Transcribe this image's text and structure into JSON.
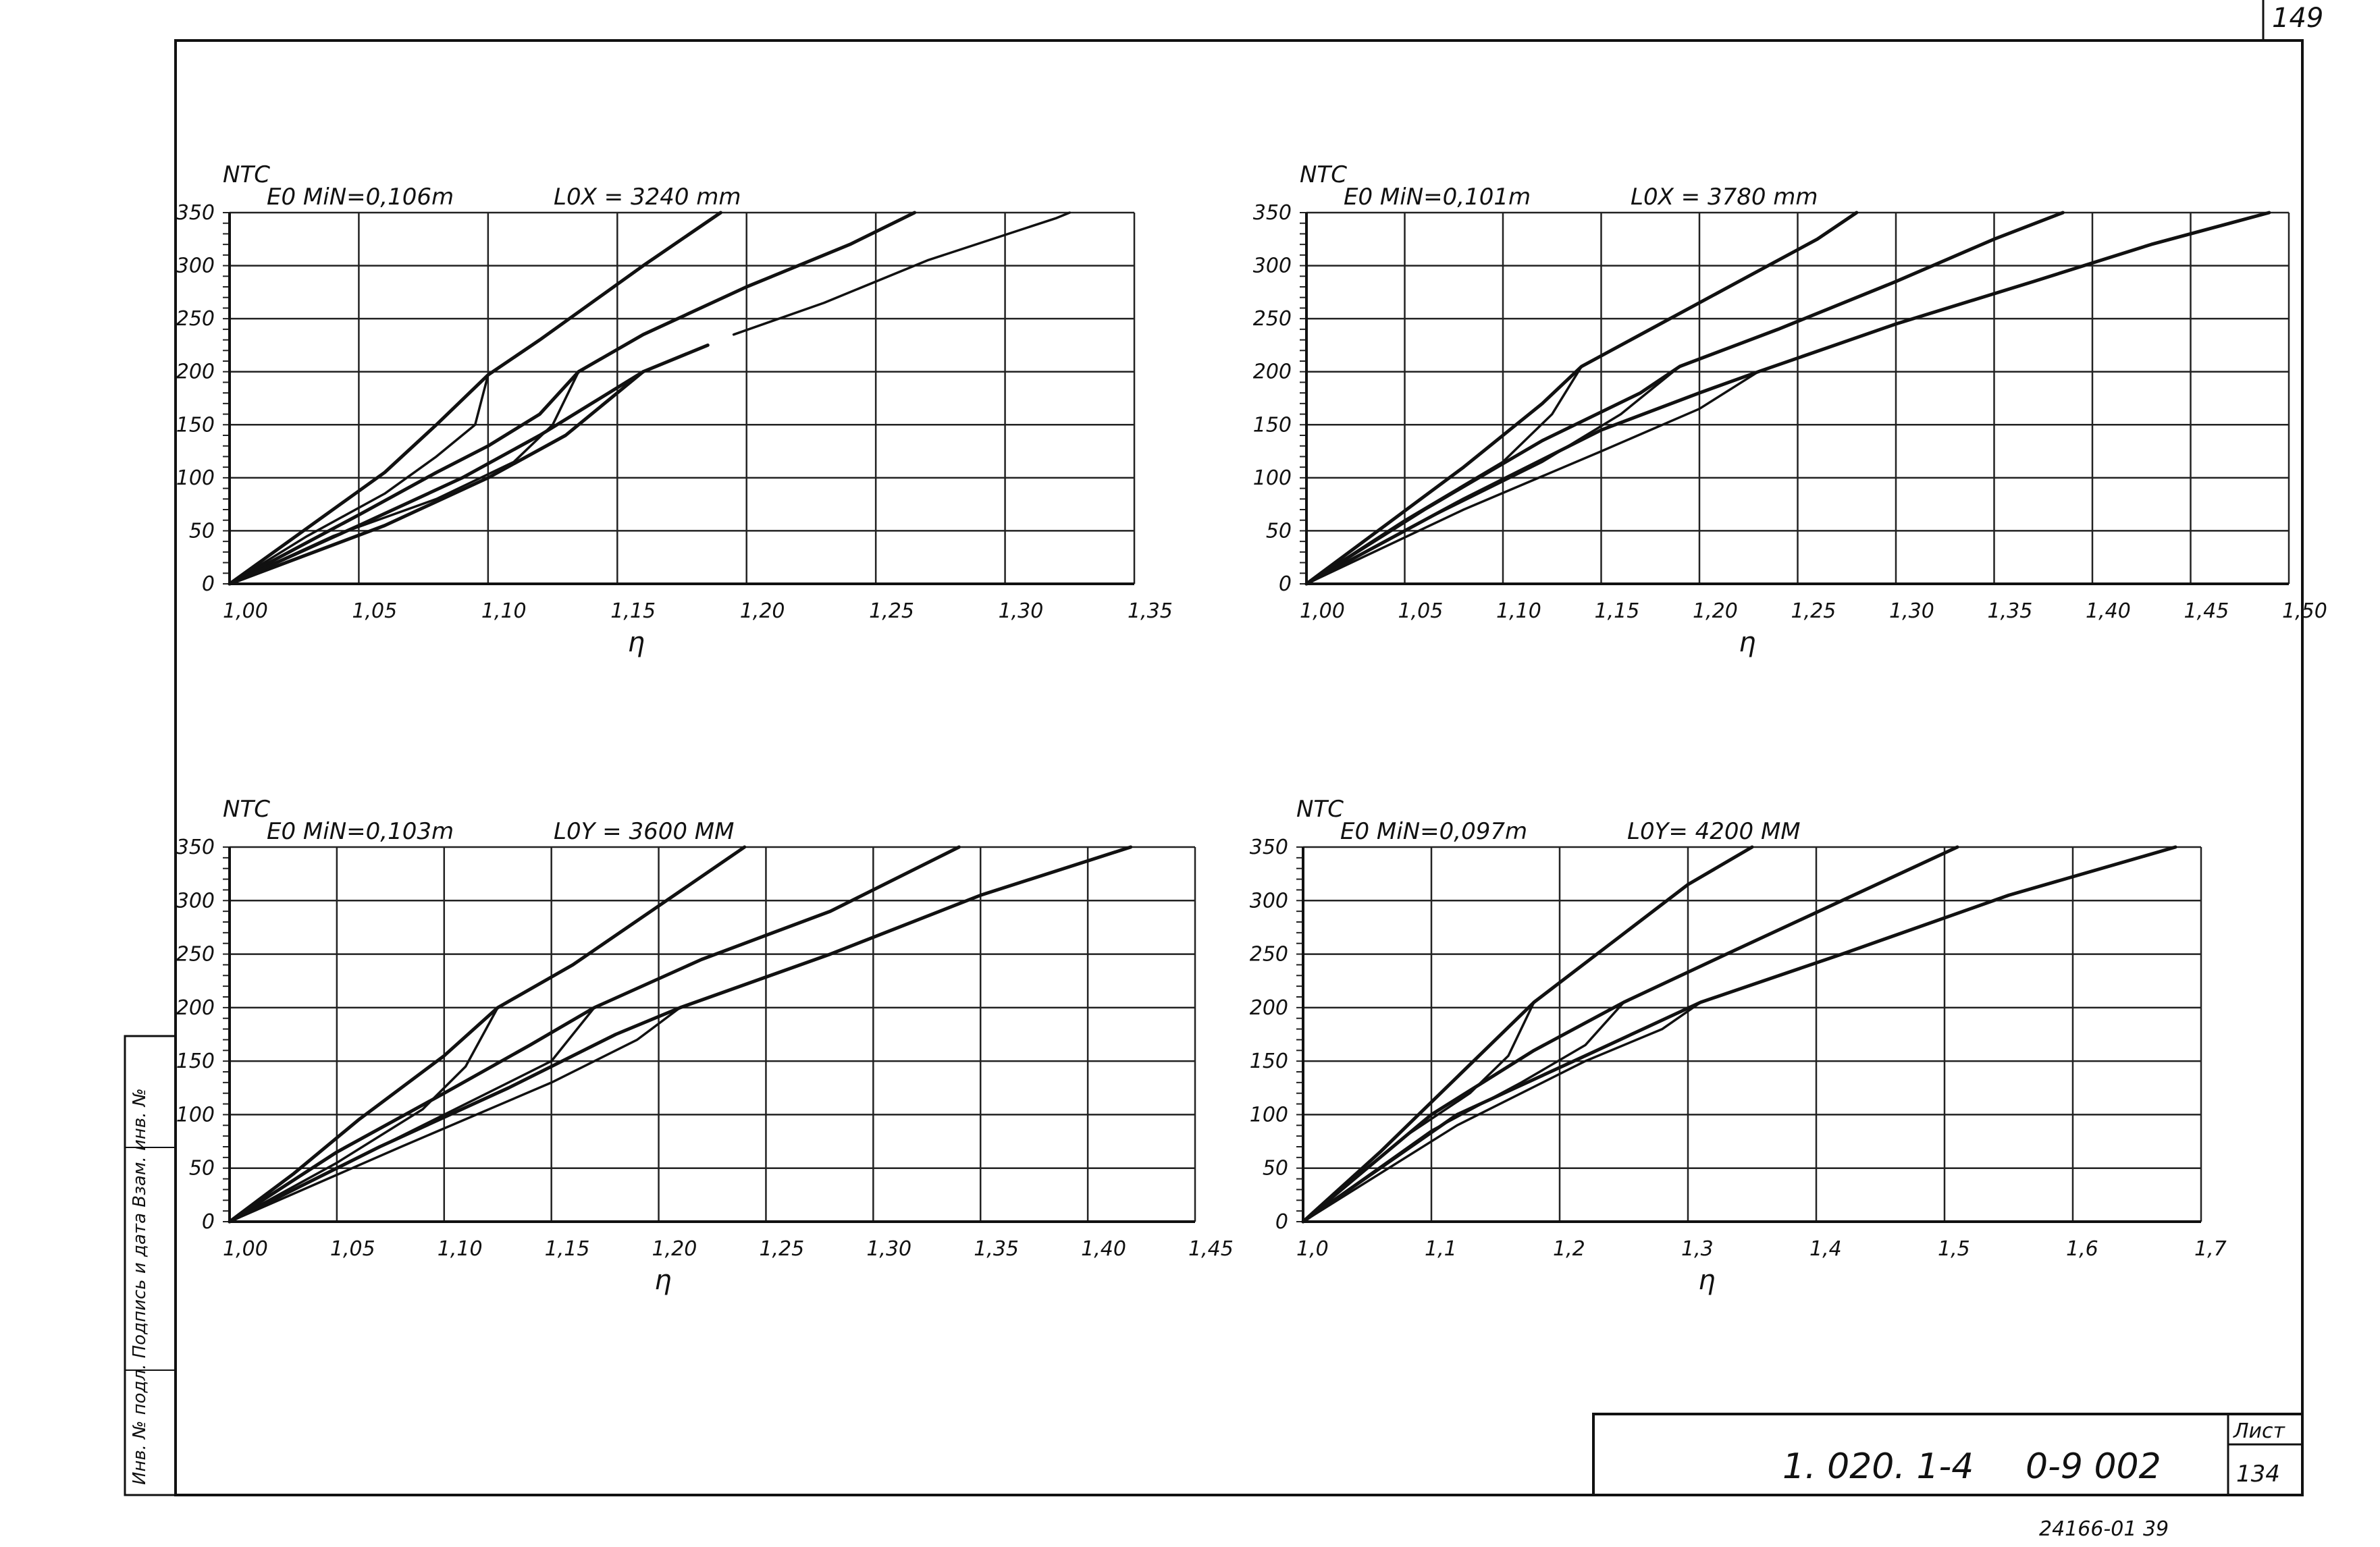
{
  "sheet": {
    "page_number": "149",
    "document_code": "1. 020. 1-4",
    "drawing_code": "0-9 002",
    "sheet_label": "Лист",
    "sheet_number": "134",
    "stamp": "24166-01 39",
    "side_stamp": "Инв. № подл.   Подпись и дата   Взам. инв. №"
  },
  "chart_data": [
    {
      "type": "line",
      "ylabel": "NТС",
      "xlabel": "η",
      "param_e": "E0 MiN=0,106m",
      "param_l": "L0X = 3240 mm",
      "x_ticks": [
        1.0,
        1.05,
        1.1,
        1.15,
        1.2,
        1.25,
        1.3,
        1.35
      ],
      "x_tick_labels": [
        "1,00",
        "1,05",
        "1,10",
        "1,15",
        "1,20",
        "1,25",
        "1,30",
        "1,35"
      ],
      "y_ticks": [
        0,
        50,
        100,
        150,
        200,
        250,
        300,
        350
      ],
      "y_tick_labels": [
        "0",
        "50",
        "100",
        "150",
        "200",
        "250",
        "300",
        "350"
      ],
      "xlim": [
        1.0,
        1.35
      ],
      "ylim": [
        0,
        350
      ],
      "grid": true,
      "series": [
        {
          "points": [
            [
              1.0,
              0
            ],
            [
              1.02,
              35
            ],
            [
              1.04,
              70
            ],
            [
              1.06,
              105
            ],
            [
              1.08,
              150
            ],
            [
              1.1,
              197
            ],
            [
              1.12,
              230
            ],
            [
              1.14,
              265
            ],
            [
              1.16,
              300
            ],
            [
              1.19,
              350
            ]
          ]
        },
        {
          "points": [
            [
              1.0,
              0
            ],
            [
              1.03,
              45
            ],
            [
              1.06,
              85
            ],
            [
              1.08,
              120
            ],
            [
              1.095,
              150
            ],
            [
              1.1,
              197
            ]
          ]
        },
        {
          "points": [
            [
              1.0,
              0
            ],
            [
              1.05,
              65
            ],
            [
              1.08,
              105
            ],
            [
              1.1,
              130
            ],
            [
              1.12,
              160
            ],
            [
              1.135,
              200
            ],
            [
              1.16,
              235
            ],
            [
              1.2,
              280
            ],
            [
              1.24,
              320
            ],
            [
              1.265,
              350
            ]
          ]
        },
        {
          "points": [
            [
              1.0,
              0
            ],
            [
              1.04,
              45
            ],
            [
              1.08,
              80
            ],
            [
              1.11,
              115
            ],
            [
              1.125,
              150
            ],
            [
              1.135,
              200
            ]
          ]
        },
        {
          "points": [
            [
              1.0,
              0
            ],
            [
              1.06,
              55
            ],
            [
              1.1,
              100
            ],
            [
              1.13,
              140
            ],
            [
              1.16,
              200
            ],
            [
              1.185,
              225
            ]
          ]
        },
        {
          "points": [
            [
              1.195,
              235
            ],
            [
              1.23,
              265
            ],
            [
              1.27,
              305
            ],
            [
              1.32,
              345
            ],
            [
              1.325,
              350
            ]
          ]
        },
        {
          "points": [
            [
              1.0,
              0
            ],
            [
              1.05,
              55
            ],
            [
              1.09,
              100
            ],
            [
              1.12,
              140
            ],
            [
              1.14,
              170
            ],
            [
              1.16,
              200
            ]
          ]
        }
      ]
    },
    {
      "type": "line",
      "ylabel": "NТС",
      "xlabel": "η",
      "param_e": "E0 MiN=0,101m",
      "param_l": "L0X = 3780 mm",
      "x_ticks": [
        1.0,
        1.05,
        1.1,
        1.15,
        1.2,
        1.25,
        1.3,
        1.35,
        1.4,
        1.45,
        1.5
      ],
      "x_tick_labels": [
        "1,00",
        "1,05",
        "1,10",
        "1,15",
        "1,20",
        "1,25",
        "1,30",
        "1,35",
        "1,40",
        "1,45",
        "1,50"
      ],
      "y_ticks": [
        0,
        50,
        100,
        150,
        200,
        250,
        300,
        350
      ],
      "y_tick_labels": [
        "0",
        "50",
        "100",
        "150",
        "200",
        "250",
        "300",
        "350"
      ],
      "xlim": [
        1.0,
        1.5
      ],
      "ylim": [
        0,
        350
      ],
      "grid": true,
      "series": [
        {
          "points": [
            [
              1.0,
              0
            ],
            [
              1.04,
              55
            ],
            [
              1.08,
              110
            ],
            [
              1.12,
              170
            ],
            [
              1.14,
              205
            ],
            [
              1.18,
              245
            ],
            [
              1.22,
              285
            ],
            [
              1.26,
              325
            ],
            [
              1.28,
              350
            ]
          ]
        },
        {
          "points": [
            [
              1.0,
              0
            ],
            [
              1.05,
              60
            ],
            [
              1.1,
              115
            ],
            [
              1.125,
              160
            ],
            [
              1.14,
              205
            ]
          ]
        },
        {
          "points": [
            [
              1.0,
              0
            ],
            [
              1.06,
              70
            ],
            [
              1.12,
              135
            ],
            [
              1.17,
              180
            ],
            [
              1.19,
              205
            ],
            [
              1.24,
              240
            ],
            [
              1.3,
              285
            ],
            [
              1.35,
              325
            ],
            [
              1.385,
              350
            ]
          ]
        },
        {
          "points": [
            [
              1.0,
              0
            ],
            [
              1.06,
              60
            ],
            [
              1.12,
              115
            ],
            [
              1.16,
              160
            ],
            [
              1.19,
              205
            ]
          ]
        },
        {
          "points": [
            [
              1.0,
              0
            ],
            [
              1.08,
              80
            ],
            [
              1.15,
              145
            ],
            [
              1.2,
              180
            ],
            [
              1.23,
              200
            ],
            [
              1.3,
              245
            ],
            [
              1.37,
              285
            ],
            [
              1.43,
              320
            ],
            [
              1.49,
              350
            ]
          ]
        },
        {
          "points": [
            [
              1.0,
              0
            ],
            [
              1.08,
              70
            ],
            [
              1.15,
              125
            ],
            [
              1.2,
              165
            ],
            [
              1.23,
              200
            ]
          ]
        }
      ]
    },
    {
      "type": "line",
      "ylabel": "NТС",
      "xlabel": "η",
      "param_e": "E0 MiN=0,103m",
      "param_l": "L0Y = 3600 MM",
      "x_ticks": [
        1.0,
        1.05,
        1.1,
        1.15,
        1.2,
        1.25,
        1.3,
        1.35,
        1.4,
        1.45
      ],
      "x_tick_labels": [
        "1,00",
        "1,05",
        "1,10",
        "1,15",
        "1,20",
        "1,25",
        "1,30",
        "1,35",
        "1,40",
        "1,45"
      ],
      "y_ticks": [
        0,
        50,
        100,
        150,
        200,
        250,
        300,
        350
      ],
      "y_tick_labels": [
        "0",
        "50",
        "100",
        "150",
        "200",
        "250",
        "300",
        "350"
      ],
      "xlim": [
        1.0,
        1.45
      ],
      "ylim": [
        0,
        350
      ],
      "grid": true,
      "series": [
        {
          "points": [
            [
              1.0,
              0
            ],
            [
              1.03,
              45
            ],
            [
              1.06,
              95
            ],
            [
              1.1,
              155
            ],
            [
              1.125,
              200
            ],
            [
              1.16,
              240
            ],
            [
              1.2,
              295
            ],
            [
              1.24,
              350
            ]
          ]
        },
        {
          "points": [
            [
              1.0,
              0
            ],
            [
              1.05,
              55
            ],
            [
              1.09,
              105
            ],
            [
              1.11,
              145
            ],
            [
              1.125,
              200
            ]
          ]
        },
        {
          "points": [
            [
              1.0,
              0
            ],
            [
              1.05,
              65
            ],
            [
              1.1,
              120
            ],
            [
              1.14,
              165
            ],
            [
              1.17,
              200
            ],
            [
              1.22,
              245
            ],
            [
              1.28,
              290
            ],
            [
              1.34,
              350
            ]
          ]
        },
        {
          "points": [
            [
              1.0,
              0
            ],
            [
              1.06,
              60
            ],
            [
              1.11,
              110
            ],
            [
              1.15,
              150
            ],
            [
              1.17,
              200
            ]
          ]
        },
        {
          "points": [
            [
              1.0,
              0
            ],
            [
              1.07,
              70
            ],
            [
              1.13,
              125
            ],
            [
              1.18,
              175
            ],
            [
              1.21,
              200
            ],
            [
              1.28,
              250
            ],
            [
              1.35,
              305
            ],
            [
              1.42,
              350
            ]
          ]
        },
        {
          "points": [
            [
              1.0,
              0
            ],
            [
              1.08,
              70
            ],
            [
              1.15,
              130
            ],
            [
              1.19,
              170
            ],
            [
              1.21,
              200
            ]
          ]
        }
      ]
    },
    {
      "type": "line",
      "ylabel": "NТС",
      "xlabel": "η",
      "param_e": "E0 MiN=0,097m",
      "param_l": "L0Y= 4200 MM",
      "x_ticks": [
        1.0,
        1.1,
        1.2,
        1.3,
        1.4,
        1.5,
        1.6,
        1.7
      ],
      "x_tick_labels": [
        "1,0",
        "1,1",
        "1,2",
        "1,3",
        "1,4",
        "1,5",
        "1,6",
        "1,7"
      ],
      "y_ticks": [
        0,
        50,
        100,
        150,
        200,
        250,
        300,
        350
      ],
      "y_tick_labels": [
        "0",
        "50",
        "100",
        "150",
        "200",
        "250",
        "300",
        "350"
      ],
      "xlim": [
        1.0,
        1.7
      ],
      "ylim": [
        0,
        350
      ],
      "grid": true,
      "series": [
        {
          "points": [
            [
              1.0,
              0
            ],
            [
              1.06,
              65
            ],
            [
              1.12,
              135
            ],
            [
              1.18,
              205
            ],
            [
              1.24,
              260
            ],
            [
              1.3,
              315
            ],
            [
              1.35,
              350
            ]
          ]
        },
        {
          "points": [
            [
              1.0,
              0
            ],
            [
              1.08,
              80
            ],
            [
              1.13,
              120
            ],
            [
              1.16,
              155
            ],
            [
              1.18,
              205
            ]
          ]
        },
        {
          "points": [
            [
              1.0,
              0
            ],
            [
              1.1,
              100
            ],
            [
              1.18,
              160
            ],
            [
              1.25,
              205
            ],
            [
              1.33,
              250
            ],
            [
              1.42,
              300
            ],
            [
              1.51,
              350
            ]
          ]
        },
        {
          "points": [
            [
              1.0,
              0
            ],
            [
              1.1,
              85
            ],
            [
              1.17,
              130
            ],
            [
              1.22,
              165
            ],
            [
              1.25,
              205
            ]
          ]
        },
        {
          "points": [
            [
              1.0,
              0
            ],
            [
              1.12,
              100
            ],
            [
              1.22,
              155
            ],
            [
              1.31,
              205
            ],
            [
              1.42,
              250
            ],
            [
              1.55,
              305
            ],
            [
              1.68,
              350
            ]
          ]
        },
        {
          "points": [
            [
              1.0,
              0
            ],
            [
              1.12,
              90
            ],
            [
              1.22,
              150
            ],
            [
              1.28,
              180
            ],
            [
              1.31,
              205
            ]
          ]
        }
      ]
    }
  ]
}
